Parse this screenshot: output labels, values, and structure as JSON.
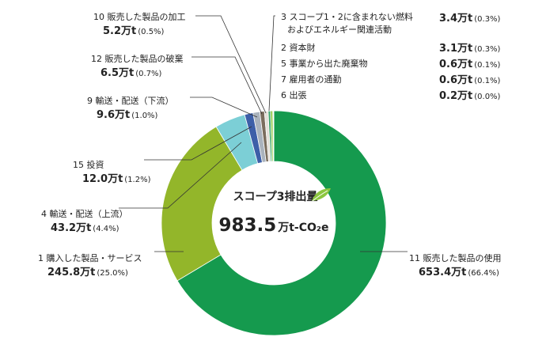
{
  "chart_data": {
    "type": "pie",
    "center_title": "スコープ3排出量",
    "total_value": "983.5",
    "total_unit": "万t-CO₂e",
    "unit": "万t",
    "slices": [
      {
        "name": "11 販売した製品の使用",
        "value": 653.4,
        "value_label": "653.4万t",
        "pct_label": "(66.4%)",
        "color": "#159a4e"
      },
      {
        "name": "1 購入した製品・サービス",
        "value": 245.8,
        "value_label": "245.8万t",
        "pct_label": "(25.0%)",
        "color": "#93b62a"
      },
      {
        "name": "4 輸送・配送（上流）",
        "value": 43.2,
        "value_label": "43.2万t",
        "pct_label": "(4.4%)",
        "color": "#7ccfd6"
      },
      {
        "name": "15 投資",
        "value": 12.0,
        "value_label": "12.0万t",
        "pct_label": "(1.2%)",
        "color": "#3d5fa8"
      },
      {
        "name": "9 輸送・配送（下流）",
        "value": 9.6,
        "value_label": "9.6万t",
        "pct_label": "(1.0%)",
        "color": "#aab3bd"
      },
      {
        "name": "12 販売した製品の破棄",
        "value": 6.5,
        "value_label": "6.5万t",
        "pct_label": "(0.7%)",
        "color": "#7a6d5d"
      },
      {
        "name": "10 販売した製品の加工",
        "value": 5.2,
        "value_label": "5.2万t",
        "pct_label": "(0.5%)",
        "color": "#e4e0d8"
      },
      {
        "name": "3 スコープ1・2に含まれない燃料およびエネルギー関連活動",
        "name_line1": "3 スコープ1・2に含まれない燃料",
        "name_line2": "およびエネルギー関連活動",
        "value": 3.4,
        "value_label": "3.4万t",
        "pct_label": "(0.3%)",
        "color": "#3aa56a"
      },
      {
        "name": "2 資本財",
        "value": 3.1,
        "value_label": "3.1万t",
        "pct_label": "(0.3%)",
        "color": "#8cc63f"
      },
      {
        "name": "5 事業から出た廃棄物",
        "value": 0.6,
        "value_label": "0.6万t",
        "pct_label": "(0.1%)",
        "color": "#5a8a78"
      },
      {
        "name": "7 雇用者の通勤",
        "value": 0.6,
        "value_label": "0.6万t",
        "pct_label": "(0.1%)",
        "color": "#b7c79b"
      },
      {
        "name": "6 出張",
        "value": 0.2,
        "value_label": "0.2万t",
        "pct_label": "(0.0%)",
        "color": "#c9c9c9"
      }
    ]
  }
}
